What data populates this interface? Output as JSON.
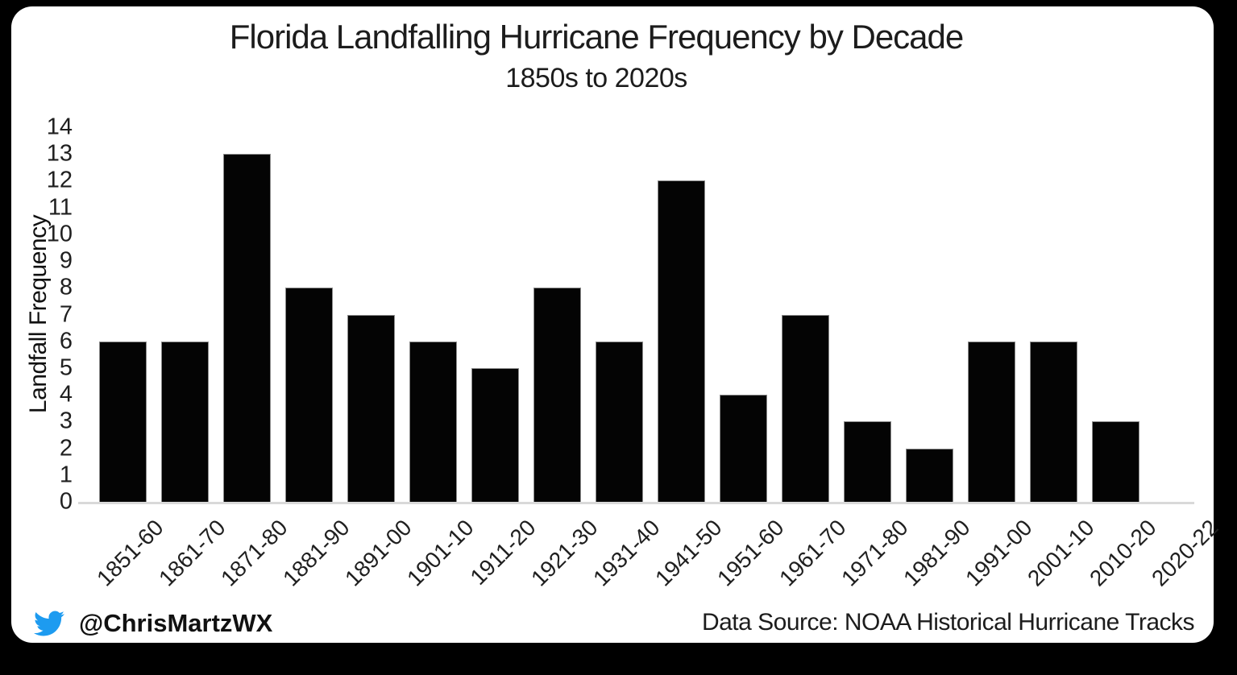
{
  "frame": {
    "background_color": "#000000",
    "card_color": "#ffffff"
  },
  "chart_data": {
    "type": "bar",
    "title": "Florida Landfalling Hurricane Frequency by Decade",
    "subtitle": "1850s to 2020s",
    "xlabel": "",
    "ylabel": "Landfall Frequency",
    "categories": [
      "1851-60",
      "1861-70",
      "1871-80",
      "1881-90",
      "1891-00",
      "1901-10",
      "1911-20",
      "1921-30",
      "1931-40",
      "1941-50",
      "1951-60",
      "1961-70",
      "1971-80",
      "1981-90",
      "1991-00",
      "2001-10",
      "2010-20",
      "2020-22"
    ],
    "values": [
      6,
      6,
      13,
      8,
      7,
      6,
      5,
      8,
      6,
      12,
      4,
      7,
      3,
      2,
      6,
      6,
      3,
      0
    ],
    "ylim": [
      0,
      14
    ],
    "ytick_step": 1,
    "grid": false,
    "legend": false,
    "bar_color": "#040404",
    "axis_line_color": "#d9d9d9",
    "x_label_rotation_deg": 45
  },
  "footer": {
    "twitter_handle": "@ChrisMartzWX",
    "twitter_icon": "twitter-bird-icon",
    "twitter_icon_color": "#1d9bf0",
    "data_source": "Data Source: NOAA Historical Hurricane Tracks"
  }
}
